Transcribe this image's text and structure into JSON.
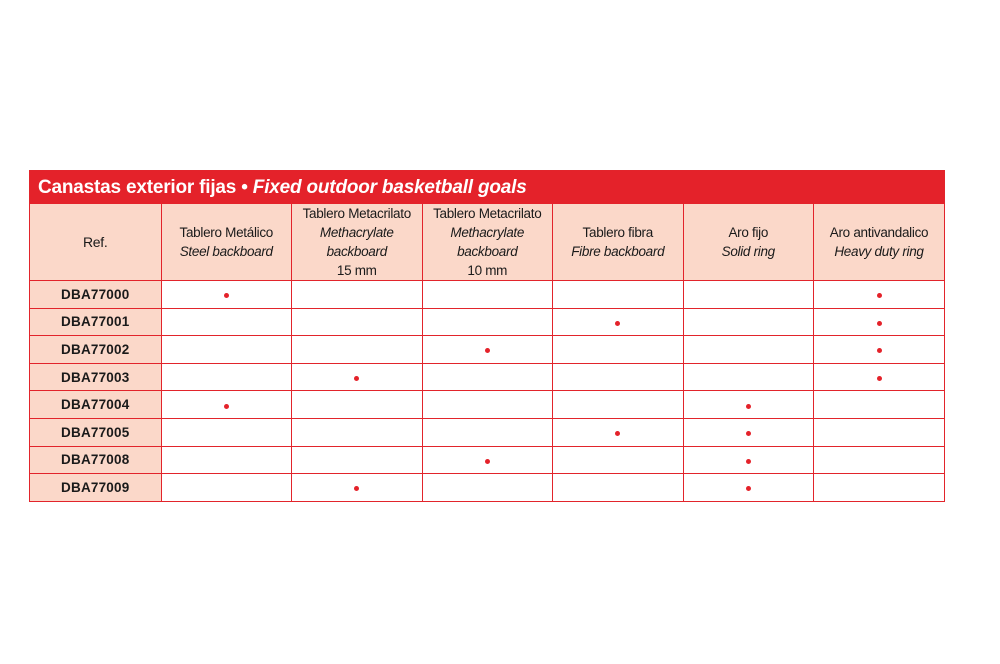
{
  "table": {
    "title_es": "Canastas exterior fijas",
    "title_sep": " • ",
    "title_en": "Fixed outdoor basketball goals",
    "columns": [
      {
        "es": "Ref.",
        "en": "",
        "size": ""
      },
      {
        "es": "Tablero Metálico",
        "en": "Steel backboard",
        "size": ""
      },
      {
        "es": "Tablero Metacrilato",
        "en": "Methacrylate backboard",
        "size": "15 mm"
      },
      {
        "es": "Tablero Metacrilato",
        "en": "Methacrylate backboard",
        "size": "10 mm"
      },
      {
        "es": "Tablero fibra",
        "en": "Fibre backboard",
        "size": ""
      },
      {
        "es": "Aro fijo",
        "en": "Solid ring",
        "size": ""
      },
      {
        "es": "Aro antivandalico",
        "en": "Heavy duty ring",
        "size": ""
      }
    ],
    "rows": [
      {
        "ref": "DBA77000",
        "marks": [
          true,
          false,
          false,
          false,
          false,
          true
        ]
      },
      {
        "ref": "DBA77001",
        "marks": [
          false,
          false,
          false,
          true,
          false,
          true
        ]
      },
      {
        "ref": "DBA77002",
        "marks": [
          false,
          false,
          true,
          false,
          false,
          true
        ]
      },
      {
        "ref": "DBA77003",
        "marks": [
          false,
          true,
          false,
          false,
          false,
          true
        ]
      },
      {
        "ref": "DBA77004",
        "marks": [
          true,
          false,
          false,
          false,
          true,
          false
        ]
      },
      {
        "ref": "DBA77005",
        "marks": [
          false,
          false,
          false,
          true,
          true,
          false
        ]
      },
      {
        "ref": "DBA77008",
        "marks": [
          false,
          false,
          true,
          false,
          true,
          false
        ]
      },
      {
        "ref": "DBA77009",
        "marks": [
          false,
          true,
          false,
          false,
          true,
          false
        ]
      }
    ],
    "accent_color": "#e4222a",
    "header_fill": "#fbd8c9",
    "mark_icon": "bullet-dot-icon"
  }
}
